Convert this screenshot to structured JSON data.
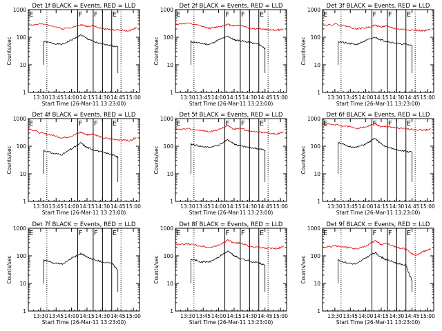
{
  "figure": {
    "layout": "3x3 panel grid",
    "background": "#ffffff",
    "colors": {
      "events": "#000000",
      "lld": "#e00000",
      "axes": "#000000"
    }
  },
  "chart_data": [
    {
      "type": "line",
      "title": "Det 1f BLACK = Events, RED = LLD",
      "xlabel": "Start Time (26-Mar-11 13:23:00)",
      "ylabel": "Counts/sec",
      "x_ticks": [
        "13:30",
        "13:45",
        "14:00",
        "14:15",
        "14:30",
        "14:45",
        "15:00"
      ],
      "y_ticks": [
        "1",
        "10",
        "100",
        "1000"
      ],
      "xlim_minutes": [
        13.3,
        15.1
      ],
      "ylim": [
        1,
        1000
      ],
      "yscale": "log",
      "interval_markers": {
        "dotted": [
          13.6,
          14.8
        ],
        "solid": [
          14.1,
          14.35,
          14.5,
          14.65
        ],
        "labels": [
          {
            "text": "E",
            "x": 13.3
          },
          {
            "text": "F",
            "x": 14.1
          },
          {
            "text": "F",
            "x": 14.35
          },
          {
            "text": "E",
            "x": 14.65
          }
        ]
      },
      "series": [
        {
          "name": "Events",
          "color": "#000000",
          "x": [
            13.55,
            13.7,
            13.85,
            14.0,
            14.15,
            14.25,
            14.35,
            14.5,
            14.65,
            14.75
          ],
          "values": [
            70,
            60,
            55,
            80,
            120,
            90,
            70,
            55,
            50,
            45
          ]
        },
        {
          "name": "LLD",
          "color": "#e00000",
          "x": [
            13.3,
            13.5,
            13.7,
            13.85,
            14.0,
            14.15,
            14.25,
            14.35,
            14.5,
            14.65,
            14.8,
            14.95,
            15.05
          ],
          "values": [
            270,
            300,
            260,
            200,
            230,
            280,
            250,
            260,
            200,
            190,
            180,
            170,
            230
          ]
        }
      ]
    },
    {
      "type": "line",
      "title": "Det 2f BLACK = Events, RED = LLD",
      "xlabel": "Start Time (26-Mar-11 13:23:00)",
      "ylabel": "Counts/sec",
      "x_ticks": [
        "13:30",
        "13:45",
        "14:00",
        "14:15",
        "14:30",
        "14:45",
        "15:00"
      ],
      "y_ticks": [
        "1",
        "10",
        "100",
        "1000"
      ],
      "xlim_minutes": [
        13.3,
        15.1
      ],
      "ylim": [
        1,
        1000
      ],
      "yscale": "log",
      "interval_markers": {
        "dotted": [
          13.6,
          14.8
        ],
        "solid": [
          14.1,
          14.35,
          14.5,
          14.65
        ],
        "labels": [
          {
            "text": "E",
            "x": 13.3
          },
          {
            "text": "F",
            "x": 14.1
          },
          {
            "text": "F",
            "x": 14.35
          },
          {
            "text": "E",
            "x": 14.65
          }
        ]
      },
      "series": [
        {
          "name": "Events",
          "color": "#000000",
          "x": [
            13.55,
            13.7,
            13.85,
            14.0,
            14.15,
            14.25,
            14.35,
            14.5,
            14.65,
            14.75
          ],
          "values": [
            70,
            60,
            55,
            80,
            110,
            80,
            75,
            65,
            55,
            40
          ]
        },
        {
          "name": "LLD",
          "color": "#e00000",
          "x": [
            13.3,
            13.5,
            13.7,
            13.85,
            14.0,
            14.15,
            14.25,
            14.35,
            14.5,
            14.65,
            14.8,
            14.95,
            15.05
          ],
          "values": [
            300,
            320,
            260,
            210,
            240,
            290,
            260,
            280,
            210,
            200,
            190,
            180,
            200
          ]
        }
      ]
    },
    {
      "type": "line",
      "title": "Det 3f BLACK = Events, RED = LLD",
      "xlabel": "Start Time (26-Mar-11 13:23:00)",
      "ylabel": "Counts/sec",
      "x_ticks": [
        "13:30",
        "13:45",
        "14:00",
        "14:15",
        "14:30",
        "14:45",
        "15:00"
      ],
      "y_ticks": [
        "1",
        "10",
        "100",
        "1000"
      ],
      "xlim_minutes": [
        13.3,
        15.1
      ],
      "ylim": [
        1,
        1000
      ],
      "yscale": "log",
      "interval_markers": {
        "dotted": [
          13.6,
          14.8
        ],
        "solid": [
          14.1,
          14.35,
          14.5,
          14.65
        ],
        "labels": [
          {
            "text": "E",
            "x": 13.3
          },
          {
            "text": "F",
            "x": 14.1
          },
          {
            "text": "F",
            "x": 14.35
          },
          {
            "text": "E",
            "x": 14.65
          }
        ]
      },
      "series": [
        {
          "name": "Events",
          "color": "#000000",
          "x": [
            13.55,
            13.7,
            13.85,
            14.0,
            14.15,
            14.25,
            14.35,
            14.5,
            14.65,
            14.75
          ],
          "values": [
            70,
            60,
            55,
            75,
            100,
            80,
            70,
            60,
            55,
            50
          ]
        },
        {
          "name": "LLD",
          "color": "#e00000",
          "x": [
            13.3,
            13.5,
            13.7,
            13.85,
            14.0,
            14.15,
            14.25,
            14.35,
            14.5,
            14.65,
            14.8,
            14.95,
            15.05
          ],
          "values": [
            270,
            300,
            250,
            200,
            220,
            270,
            240,
            250,
            200,
            190,
            180,
            170,
            190
          ]
        }
      ]
    },
    {
      "type": "line",
      "title": "Det 4f BLACK = Events, RED = LLD",
      "xlabel": "Start Time (26-Mar-11 13:23:00)",
      "ylabel": "Counts/sec",
      "x_ticks": [
        "13:30",
        "13:45",
        "14:00",
        "14:15",
        "14:30",
        "14:45",
        "15:00"
      ],
      "y_ticks": [
        "1",
        "10",
        "100",
        "1000"
      ],
      "xlim_minutes": [
        13.3,
        15.1
      ],
      "ylim": [
        1,
        1000
      ],
      "yscale": "log",
      "interval_markers": {
        "dotted": [
          13.6,
          14.8
        ],
        "solid": [
          14.1,
          14.35,
          14.5,
          14.65
        ],
        "labels": [
          {
            "text": "E",
            "x": 13.3
          },
          {
            "text": "F",
            "x": 14.1
          },
          {
            "text": "F",
            "x": 14.35
          },
          {
            "text": "E",
            "x": 14.65
          }
        ]
      },
      "series": [
        {
          "name": "Events",
          "color": "#000000",
          "x": [
            13.55,
            13.7,
            13.85,
            14.0,
            14.15,
            14.25,
            14.35,
            14.5,
            14.65,
            14.75
          ],
          "values": [
            70,
            55,
            50,
            80,
            130,
            90,
            75,
            60,
            50,
            40
          ]
        },
        {
          "name": "LLD",
          "color": "#e00000",
          "x": [
            13.3,
            13.5,
            13.7,
            13.85,
            14.0,
            14.15,
            14.25,
            14.35,
            14.5,
            14.65,
            14.8,
            14.95,
            15.05
          ],
          "values": [
            450,
            300,
            250,
            200,
            230,
            320,
            260,
            280,
            200,
            180,
            170,
            160,
            210
          ]
        }
      ]
    },
    {
      "type": "line",
      "title": "Det 5f BLACK = Events, RED = LLD",
      "xlabel": "Start Time (26-Mar-11 13:23:00)",
      "ylabel": "Counts/sec",
      "x_ticks": [
        "13:30",
        "13:45",
        "14:00",
        "14:15",
        "14:30",
        "14:45",
        "15:00"
      ],
      "y_ticks": [
        "1",
        "10",
        "100",
        "1000"
      ],
      "xlim_minutes": [
        13.3,
        15.1
      ],
      "ylim": [
        1,
        1000
      ],
      "yscale": "log",
      "interval_markers": {
        "dotted": [
          13.6,
          14.8
        ],
        "solid": [
          14.1,
          14.35,
          14.5,
          14.65
        ],
        "labels": [
          {
            "text": "E",
            "x": 13.3
          },
          {
            "text": "F",
            "x": 14.1
          },
          {
            "text": "F",
            "x": 14.35
          },
          {
            "text": "E",
            "x": 14.65
          }
        ]
      },
      "series": [
        {
          "name": "Events",
          "color": "#000000",
          "x": [
            13.55,
            13.7,
            13.85,
            14.0,
            14.15,
            14.25,
            14.35,
            14.5,
            14.65,
            14.75
          ],
          "values": [
            120,
            100,
            90,
            110,
            170,
            120,
            100,
            90,
            80,
            70
          ]
        },
        {
          "name": "LLD",
          "color": "#e00000",
          "x": [
            13.3,
            13.5,
            13.7,
            13.85,
            14.0,
            14.15,
            14.25,
            14.35,
            14.5,
            14.65,
            14.8,
            14.95,
            15.05
          ],
          "values": [
            400,
            420,
            380,
            330,
            400,
            550,
            420,
            450,
            350,
            320,
            300,
            280,
            330
          ]
        }
      ]
    },
    {
      "type": "line",
      "title": "Det 6f BLACK = Events, RED = LLD",
      "xlabel": "Start Time (26-Mar-11 13:23:00)",
      "ylabel": "Counts/sec",
      "x_ticks": [
        "13:30",
        "13:45",
        "14:00",
        "14:15",
        "14:30",
        "14:45",
        "15:00"
      ],
      "y_ticks": [
        "1",
        "10",
        "100",
        "1000"
      ],
      "xlim_minutes": [
        13.3,
        15.1
      ],
      "ylim": [
        1,
        1000
      ],
      "yscale": "log",
      "interval_markers": {
        "dotted": [
          13.6,
          14.8
        ],
        "solid": [
          14.1,
          14.35,
          14.5,
          14.65
        ],
        "labels": [
          {
            "text": "E",
            "x": 13.3
          },
          {
            "text": "F",
            "x": 14.1
          },
          {
            "text": "F",
            "x": 14.35
          },
          {
            "text": "E",
            "x": 14.65
          }
        ]
      },
      "series": [
        {
          "name": "Events",
          "color": "#000000",
          "x": [
            13.55,
            13.7,
            13.85,
            14.0,
            14.15,
            14.25,
            14.35,
            14.5,
            14.65,
            14.75
          ],
          "values": [
            140,
            100,
            90,
            120,
            190,
            120,
            90,
            75,
            65,
            60
          ]
        },
        {
          "name": "LLD",
          "color": "#e00000",
          "x": [
            13.3,
            13.5,
            13.7,
            13.85,
            14.0,
            14.15,
            14.25,
            14.35,
            14.5,
            14.65,
            14.8,
            14.95,
            15.05
          ],
          "values": [
            650,
            600,
            520,
            450,
            500,
            650,
            500,
            520,
            450,
            420,
            400,
            380,
            420
          ]
        }
      ]
    },
    {
      "type": "line",
      "title": "Det 7f BLACK = Events, RED = LLD",
      "xlabel": "Start Time (26-Mar-11 13:23:00)",
      "ylabel": "Counts/sec",
      "x_ticks": [
        "13:30",
        "13:45",
        "14:00",
        "14:15",
        "14:30",
        "14:45",
        "15:00"
      ],
      "y_ticks": [
        "1",
        "10",
        "100",
        "1000"
      ],
      "xlim_minutes": [
        13.3,
        15.1
      ],
      "ylim": [
        1,
        1000
      ],
      "yscale": "log",
      "interval_markers": {
        "dotted": [
          13.6,
          14.8
        ],
        "solid": [
          14.1,
          14.35,
          14.5,
          14.65
        ],
        "labels": [
          {
            "text": "E",
            "x": 13.3
          },
          {
            "text": "F",
            "x": 14.1
          },
          {
            "text": "F",
            "x": 14.35
          },
          {
            "text": "E",
            "x": 14.65
          }
        ]
      },
      "series": [
        {
          "name": "Events",
          "color": "#000000",
          "x": [
            13.55,
            13.7,
            13.85,
            14.0,
            14.15,
            14.25,
            14.35,
            14.5,
            14.65,
            14.75
          ],
          "values": [
            70,
            55,
            50,
            80,
            120,
            90,
            75,
            60,
            55,
            30
          ]
        }
      ]
    },
    {
      "type": "line",
      "title": "Det 8f BLACK = Events, RED = LLD",
      "xlabel": "Start Time (26-Mar-11 13:23:00)",
      "ylabel": "Counts/sec",
      "x_ticks": [
        "13:30",
        "13:45",
        "14:00",
        "14:15",
        "14:30",
        "14:45",
        "15:00"
      ],
      "y_ticks": [
        "1",
        "10",
        "100",
        "1000"
      ],
      "xlim_minutes": [
        13.3,
        15.1
      ],
      "ylim": [
        1,
        1000
      ],
      "yscale": "log",
      "interval_markers": {
        "dotted": [
          13.6,
          14.8
        ],
        "solid": [
          14.1,
          14.35,
          14.5,
          14.65
        ],
        "labels": [
          {
            "text": "E",
            "x": 13.3
          },
          {
            "text": "F",
            "x": 14.1
          },
          {
            "text": "F",
            "x": 14.35
          },
          {
            "text": "E",
            "x": 14.65
          }
        ]
      },
      "series": [
        {
          "name": "Events",
          "color": "#000000",
          "x": [
            13.55,
            13.7,
            13.85,
            14.0,
            14.15,
            14.25,
            14.35,
            14.5,
            14.65,
            14.75
          ],
          "values": [
            80,
            60,
            60,
            90,
            150,
            100,
            80,
            65,
            55,
            45
          ]
        },
        {
          "name": "LLD",
          "color": "#e00000",
          "x": [
            13.3,
            13.5,
            13.7,
            13.85,
            14.0,
            14.15,
            14.25,
            14.35,
            14.5,
            14.65,
            14.8,
            14.95,
            15.05
          ],
          "values": [
            250,
            270,
            230,
            200,
            240,
            380,
            280,
            300,
            220,
            200,
            190,
            180,
            230
          ]
        }
      ]
    },
    {
      "type": "line",
      "title": "Det 9f BLACK = Events, RED = LLD",
      "xlabel": "Start Time (26-Mar-11 13:23:00)",
      "ylabel": "Counts/sec",
      "x_ticks": [
        "13:30",
        "13:45",
        "14:00",
        "14:15",
        "14:30",
        "14:45",
        "15:00"
      ],
      "y_ticks": [
        "1",
        "10",
        "100",
        "1000"
      ],
      "xlim_minutes": [
        13.3,
        15.1
      ],
      "ylim": [
        1,
        1000
      ],
      "yscale": "log",
      "interval_markers": {
        "dotted": [
          13.6,
          14.8
        ],
        "solid": [
          14.1,
          14.35,
          14.5,
          14.65
        ],
        "labels": [
          {
            "text": "E",
            "x": 13.3
          },
          {
            "text": "F",
            "x": 14.1
          },
          {
            "text": "F",
            "x": 14.35
          },
          {
            "text": "E",
            "x": 14.65
          }
        ]
      },
      "series": [
        {
          "name": "Events",
          "color": "#000000",
          "x": [
            13.55,
            13.7,
            13.85,
            14.0,
            14.15,
            14.25,
            14.35,
            14.5,
            14.65,
            14.75
          ],
          "values": [
            70,
            55,
            50,
            85,
            130,
            90,
            70,
            55,
            45,
            12
          ]
        },
        {
          "name": "LLD",
          "color": "#e00000",
          "x": [
            13.3,
            13.5,
            13.7,
            13.85,
            14.0,
            14.15,
            14.25,
            14.35,
            14.5,
            14.65,
            14.8,
            14.95,
            15.05
          ],
          "values": [
            200,
            230,
            200,
            180,
            220,
            350,
            260,
            280,
            200,
            180,
            100,
            150,
            180
          ]
        }
      ]
    }
  ]
}
